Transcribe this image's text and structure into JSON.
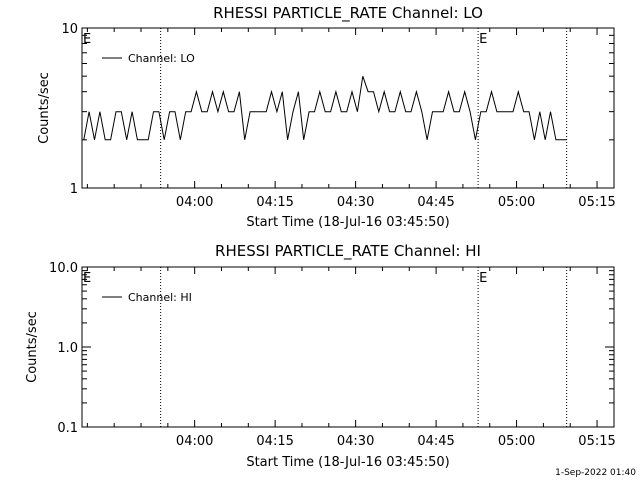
{
  "footer": {
    "timestamp": "1-Sep-2022 01:40"
  },
  "chart_data": [
    {
      "type": "line",
      "title": "RHESSI  PARTICLE_RATE Channel: LO",
      "xlabel": "Start Time (18-Jul-16 03:45:50)",
      "ylabel": "Counts/sec",
      "yscale": "log",
      "ylim": [
        1,
        10
      ],
      "ytick_labels": [
        "1",
        "10"
      ],
      "xlim_min": [
        -6.83,
        92.33
      ],
      "xtick_min": [
        14.17,
        29.17,
        44.17,
        59.17,
        74.17,
        89.17
      ],
      "xtick_labels": [
        "04:00",
        "04:15",
        "04:30",
        "04:45",
        "05:00",
        "05:15"
      ],
      "legend": {
        "location": "top-left",
        "entries": [
          "Channel: LO"
        ]
      },
      "event_lines_min": [
        7.83,
        67.0,
        83.5
      ],
      "event_markers": [
        {
          "label": "E",
          "position": "left-edge"
        },
        {
          "label": "E",
          "at_min": 67.0
        }
      ],
      "series": [
        {
          "name": "Channel: LO",
          "x": [
            -6.5,
            -5.5,
            -4.5,
            -3.5,
            -2.5,
            -1.5,
            -0.5,
            0.5,
            1.5,
            2.5,
            3.5,
            4.5,
            5.5,
            6.5,
            7.5,
            8.5,
            9.5,
            10.5,
            11.5,
            12.5,
            13.5,
            14.5,
            15.5,
            16.5,
            17.5,
            18.5,
            19.5,
            20.5,
            21.5,
            22.5,
            23.5,
            24.5,
            25.5,
            26.5,
            27.5,
            28.5,
            29.5,
            30.5,
            31.5,
            32.5,
            33.5,
            34.5,
            35.5,
            36.5,
            37.5,
            38.5,
            39.5,
            40.5,
            41.5,
            42.5,
            43.5,
            44.5,
            45.5,
            46.5,
            47.5,
            48.5,
            49.5,
            50.5,
            51.5,
            52.5,
            53.5,
            54.5,
            55.5,
            56.5,
            57.5,
            58.5,
            59.5,
            60.5,
            61.5,
            62.5,
            63.5,
            64.5,
            65.5,
            66.5,
            67.5,
            68.5,
            69.5,
            70.5,
            71.5,
            72.5,
            73.5,
            74.5,
            75.5,
            76.5,
            77.5,
            78.5,
            79.5,
            80.5,
            81.5,
            82.5,
            83.5
          ],
          "values": [
            2,
            3,
            2,
            3,
            2,
            2,
            3,
            3,
            2,
            3,
            2,
            2,
            2,
            3,
            3,
            2,
            3,
            3,
            2,
            3,
            3,
            4,
            3,
            3,
            4,
            3,
            4,
            3,
            3,
            4,
            2,
            3,
            3,
            3,
            3,
            4,
            3,
            4,
            2,
            3,
            4,
            2,
            3,
            3,
            4,
            3,
            3,
            4,
            3,
            3,
            4,
            3,
            5,
            4,
            4,
            3,
            4,
            3,
            3,
            4,
            3,
            3,
            4,
            3,
            2,
            3,
            3,
            3,
            4,
            3,
            3,
            4,
            3,
            2,
            3,
            3,
            4,
            3,
            3,
            3,
            3,
            4,
            3,
            3,
            2,
            3,
            2,
            3,
            2,
            2,
            2
          ]
        }
      ]
    },
    {
      "type": "line",
      "title": "RHESSI  PARTICLE_RATE Channel: HI",
      "xlabel": "Start Time (18-Jul-16 03:45:50)",
      "ylabel": "Counts/sec",
      "yscale": "log",
      "ylim": [
        0.1,
        10.0
      ],
      "ytick_labels": [
        "0.1",
        "1.0",
        "10.0"
      ],
      "xlim_min": [
        -6.83,
        92.33
      ],
      "xtick_min": [
        14.17,
        29.17,
        44.17,
        59.17,
        74.17,
        89.17
      ],
      "xtick_labels": [
        "04:00",
        "04:15",
        "04:30",
        "04:45",
        "05:00",
        "05:15"
      ],
      "legend": {
        "location": "top-left",
        "entries": [
          "Channel: HI"
        ]
      },
      "event_lines_min": [
        7.83,
        67.0,
        83.5
      ],
      "event_markers": [
        {
          "label": "E",
          "position": "left-edge"
        },
        {
          "label": "E",
          "at_min": 67.0
        }
      ],
      "series": [
        {
          "name": "Channel: HI",
          "x": [],
          "values": []
        }
      ]
    }
  ]
}
